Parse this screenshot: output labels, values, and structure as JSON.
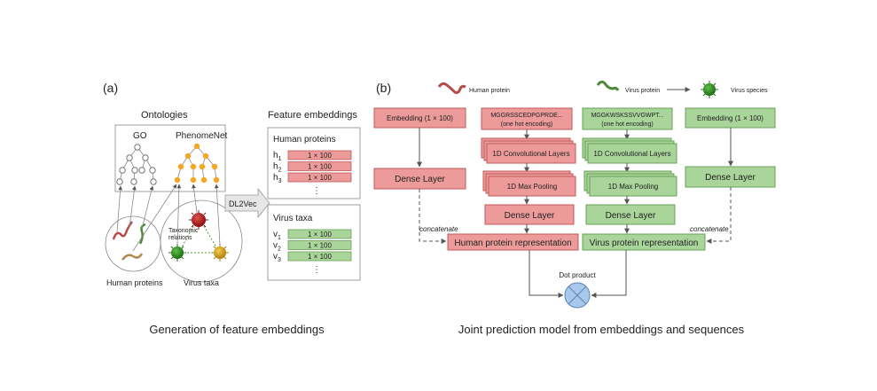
{
  "panel_a": {
    "label": "(a)",
    "ontologies_title": "Ontologies",
    "go_label": "GO",
    "phenomenet_label": "PhenomeNet",
    "feature_embeddings_title": "Feature embeddings",
    "human_proteins_title": "Human proteins",
    "h_rows": [
      {
        "var": "h",
        "sub": "1",
        "value": "1 × 100"
      },
      {
        "var": "h",
        "sub": "2",
        "value": "1 × 100"
      },
      {
        "var": "h",
        "sub": "3",
        "value": "1 × 100"
      }
    ],
    "ellipsis": "⋮",
    "dl2vec_label": "DL2Vec",
    "virus_taxa_title": "Virus taxa",
    "v_rows": [
      {
        "var": "v",
        "sub": "1",
        "value": "1 × 100"
      },
      {
        "var": "v",
        "sub": "2",
        "value": "1 × 100"
      },
      {
        "var": "v",
        "sub": "3",
        "value": "1 × 100"
      }
    ],
    "taxonomic_relations_line1": "Taxonomic",
    "taxonomic_relations_line2": "relations",
    "human_proteins_caption": "Human proteins",
    "virus_taxa_caption": "Virus taxa",
    "caption": "Generation of feature embeddings"
  },
  "panel_b": {
    "label": "(b)",
    "human_protein_label": "Human protein",
    "virus_protein_label": "Virus protein",
    "virus_species_label": "Virus species",
    "human_embedding": "Embedding (1 × 100)",
    "human_seq_line1": "MGGRSSCEDPGPRDE...",
    "human_seq_line2": "(one hot encoding)",
    "virus_seq_line1": "MGGKWSKSSVVGWPT...",
    "virus_seq_line2": "(one hot encoding)",
    "virus_embedding": "Embedding (1 × 100)",
    "conv_label": "1D Convolutional Layers",
    "maxpool_label": "1D Max Pooling",
    "dense_layer": "Dense Layer",
    "concatenate": "concatenate",
    "human_representation": "Human protein representation",
    "virus_representation": "Virus protein representation",
    "dot_product": "Dot product",
    "caption": "Joint prediction model from embeddings and sequences"
  },
  "colors": {
    "human": "#ec9a9a",
    "virus": "#a9d49a",
    "ontology_node": "#f5a623"
  }
}
